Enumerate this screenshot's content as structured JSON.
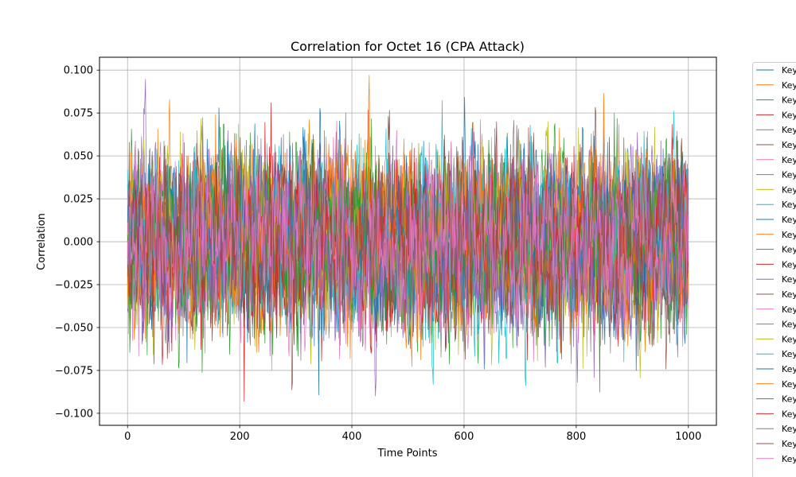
{
  "chart_data": {
    "type": "line",
    "title": "Correlation for Octet 16 (CPA Attack)",
    "xlabel": "Time Points",
    "ylabel": "Correlation",
    "xlim": [
      -50,
      1050
    ],
    "ylim": [
      -0.107,
      0.1075
    ],
    "x_range": [
      0,
      1000
    ],
    "points_per_series": 1001,
    "visible_series_count": 27,
    "x_ticks": [
      {
        "value": 0,
        "label": "0"
      },
      {
        "value": 200,
        "label": "200"
      },
      {
        "value": 400,
        "label": "400"
      },
      {
        "value": 600,
        "label": "600"
      },
      {
        "value": 800,
        "label": "800"
      },
      {
        "value": 1000,
        "label": "1000"
      }
    ],
    "y_ticks": [
      {
        "value": 0.1,
        "label": "0.100"
      },
      {
        "value": 0.075,
        "label": "0.075"
      },
      {
        "value": 0.05,
        "label": "0.050"
      },
      {
        "value": 0.025,
        "label": "0.025"
      },
      {
        "value": 0.0,
        "label": "0.000"
      },
      {
        "value": -0.025,
        "label": "−0.025"
      },
      {
        "value": -0.05,
        "label": "−0.050"
      },
      {
        "value": -0.075,
        "label": "−0.075"
      },
      {
        "value": -0.1,
        "label": "−0.100"
      }
    ],
    "grid": true,
    "legend_position": "outside-right",
    "legend_entries": [
      "Key",
      "Key",
      "Key",
      "Key",
      "Key",
      "Key",
      "Key",
      "Key",
      "Key",
      "Key",
      "Key",
      "Key",
      "Key",
      "Key",
      "Key",
      "Key",
      "Key",
      "Key",
      "Key",
      "Key",
      "Key",
      "Key",
      "Key",
      "Key",
      "Key",
      "Key",
      "Key"
    ],
    "series_colors": [
      "#1f77b4",
      "#ff7f0e",
      "#2ca02c",
      "#d62728",
      "#9467bd",
      "#8c564b",
      "#e377c2",
      "#7f7f7f",
      "#bcbd22",
      "#17becf"
    ],
    "value_envelope": {
      "typical_min": -0.06,
      "typical_max": 0.06,
      "peak_min": -0.097,
      "peak_max": 0.097
    }
  }
}
